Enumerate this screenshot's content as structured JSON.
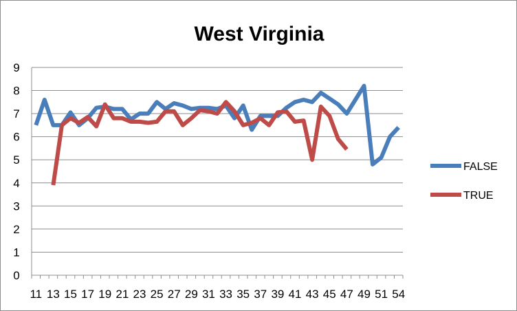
{
  "chart_data": {
    "type": "line",
    "title": "West Virginia",
    "xlabel": "",
    "ylabel": "",
    "ylim": [
      0,
      9
    ],
    "yticks": [
      "0",
      "1",
      "2",
      "3",
      "4",
      "5",
      "6",
      "7",
      "8",
      "9"
    ],
    "grid": true,
    "legend_position": "right",
    "categories": [
      "11",
      "12",
      "13",
      "14",
      "15",
      "16",
      "17",
      "18",
      "19",
      "20",
      "21",
      "22",
      "23",
      "24",
      "25",
      "26",
      "27",
      "28",
      "29",
      "30",
      "31",
      "32",
      "33",
      "34",
      "35",
      "36",
      "37",
      "38",
      "39",
      "40",
      "41",
      "42",
      "43",
      "44",
      "45",
      "46",
      "47",
      "48",
      "49",
      "50",
      "51",
      "52",
      "54"
    ],
    "x_tick_labels": [
      "11",
      "13",
      "15",
      "17",
      "19",
      "21",
      "23",
      "25",
      "27",
      "29",
      "31",
      "33",
      "35",
      "37",
      "39",
      "41",
      "43",
      "45",
      "47",
      "49",
      "51",
      "54"
    ],
    "series": [
      {
        "name": "FALSE",
        "color": "#4a7ebb",
        "values": [
          6.5,
          7.6,
          6.5,
          6.5,
          7.05,
          6.5,
          6.8,
          7.25,
          7.3,
          7.2,
          7.2,
          6.75,
          7.0,
          7.0,
          7.5,
          7.2,
          7.45,
          7.35,
          7.2,
          7.25,
          7.25,
          7.2,
          7.35,
          6.8,
          7.35,
          6.3,
          6.9,
          6.9,
          6.9,
          7.25,
          7.5,
          7.6,
          7.5,
          7.9,
          7.65,
          7.4,
          7.0,
          7.6,
          8.2,
          4.8,
          5.1,
          6.0,
          6.4
        ]
      },
      {
        "name": "TRUE",
        "color": "#be4b48",
        "values": [
          null,
          null,
          3.9,
          6.5,
          6.8,
          6.6,
          6.85,
          6.45,
          7.4,
          6.8,
          6.8,
          6.65,
          6.65,
          6.6,
          6.65,
          7.1,
          7.1,
          6.5,
          6.8,
          7.15,
          7.1,
          7.0,
          7.5,
          7.1,
          6.5,
          6.6,
          6.8,
          6.5,
          7.05,
          7.1,
          6.65,
          6.7,
          5.0,
          7.3,
          6.9,
          5.9,
          5.45,
          null,
          null,
          null,
          null,
          null,
          null
        ]
      }
    ]
  }
}
